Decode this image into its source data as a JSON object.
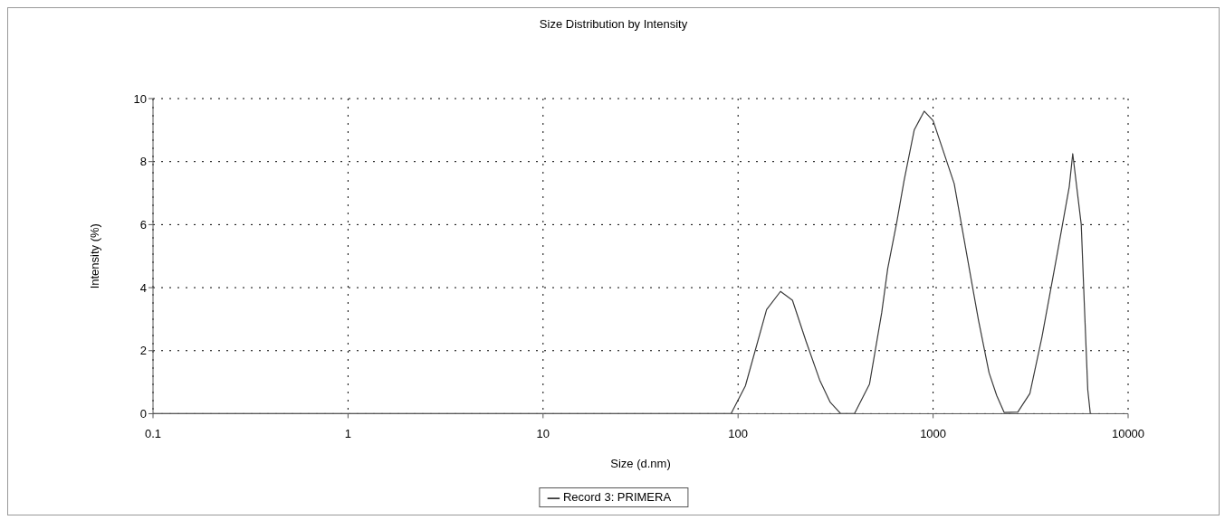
{
  "chart_data": {
    "type": "line",
    "title": "Size Distribution by Intensity",
    "xlabel": "Size (d.nm)",
    "ylabel": "Intensity (%)",
    "xlim": [
      0.1,
      10000
    ],
    "xticks": [
      0.1,
      1,
      10,
      100,
      1000,
      10000
    ],
    "ylim": [
      0,
      10
    ],
    "yticks": [
      0,
      2,
      4,
      6,
      8,
      10
    ],
    "log": "x",
    "grid": true,
    "legend": "bottom",
    "line_style": "solid",
    "marker": "none",
    "series": [
      {
        "name": "Record 3: PRIMERA",
        "color": "#3a3a3a",
        "x": [
          0.1,
          1,
          10,
          92,
          109,
          140,
          165,
          190,
          223,
          262,
          297,
          336,
          395,
          472,
          545,
          585,
          651,
          710,
          800,
          900,
          1000,
          1283,
          1585,
          1710,
          1936,
          2118,
          2313,
          2718,
          3135,
          3614,
          3954,
          4324,
          4990,
          5200,
          5750,
          5960,
          6210,
          6400
        ],
        "values": [
          0,
          0,
          0,
          0,
          0.88,
          3.3,
          3.88,
          3.6,
          2.3,
          1.07,
          0.36,
          0,
          0,
          0.94,
          3.2,
          4.6,
          6.07,
          7.4,
          9.0,
          9.6,
          9.3,
          7.3,
          4.1,
          2.96,
          1.3,
          0.58,
          0.04,
          0.05,
          0.64,
          2.43,
          3.74,
          5.05,
          7.2,
          8.25,
          6.0,
          3.5,
          0.76,
          0
        ]
      }
    ]
  }
}
